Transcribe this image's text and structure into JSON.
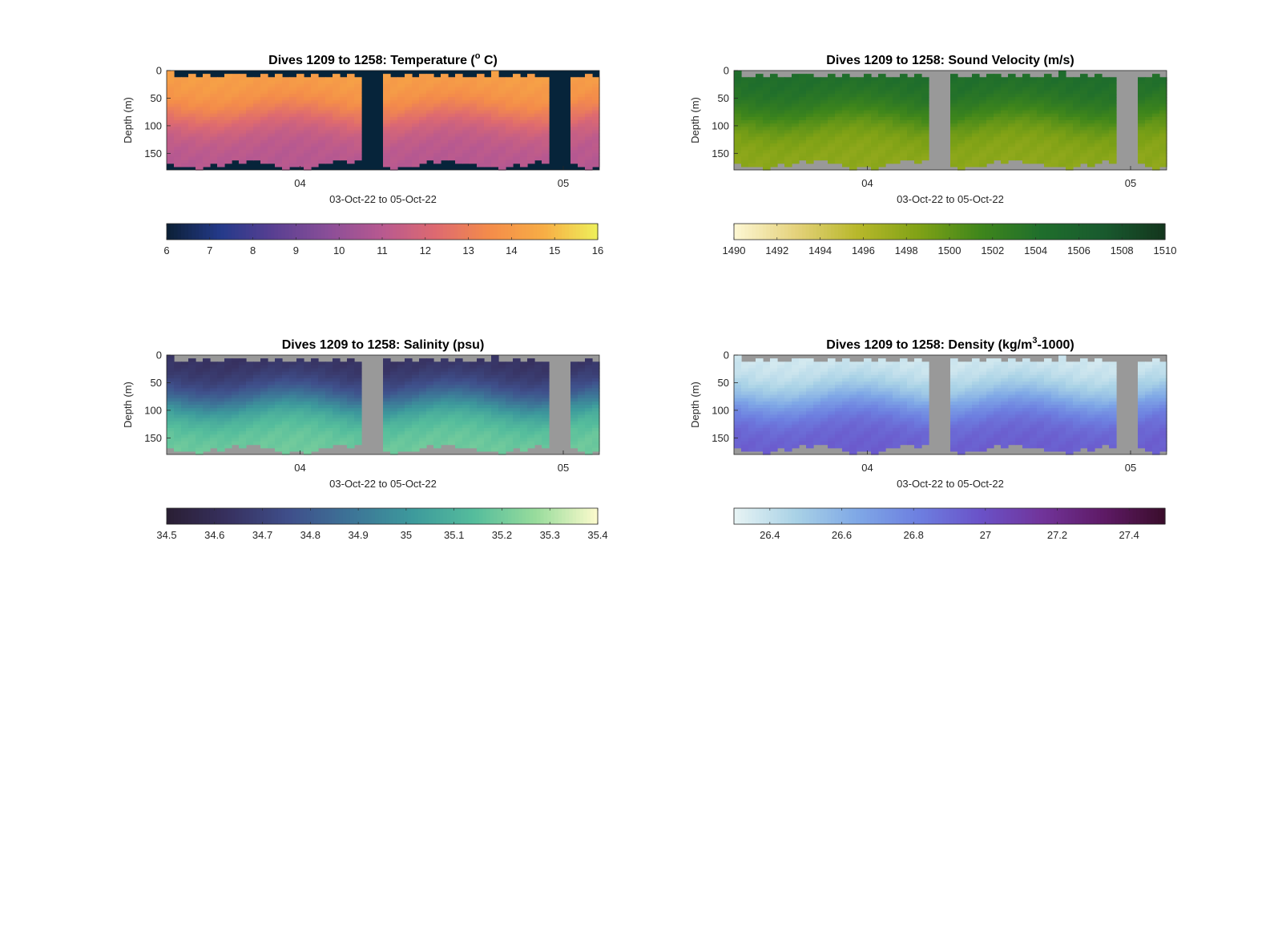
{
  "chart_data": [
    {
      "id": "temperature",
      "type": "heatmap",
      "title": "Dives 1209 to 1258: Temperature (",
      "title_sup": "o",
      "title_end": " C)",
      "ylabel": "Depth (m)",
      "xlabel": "03-Oct-22 to 05-Oct-22",
      "x_ticks": [
        "04",
        "05"
      ],
      "y_ticks": [
        0,
        50,
        100,
        150
      ],
      "ylim": [
        0,
        180
      ],
      "y_reversed": true,
      "colorbar": {
        "min": 6,
        "max": 16,
        "ticks": [
          "6",
          "7",
          "8",
          "9",
          "10",
          "11",
          "12",
          "13",
          "14",
          "15",
          "16"
        ],
        "colors": [
          "#0b1f35",
          "#243a8a",
          "#5a3f92",
          "#8a4e98",
          "#b85990",
          "#de6a70",
          "#f48c4a",
          "#f7ad45",
          "#eef05a"
        ]
      },
      "nodata_color": "#06243a",
      "surface_value": 14.3,
      "bottom_value": 10.9
    },
    {
      "id": "sound_velocity",
      "type": "heatmap",
      "title": "Dives 1209 to 1258: Sound Velocity (m/s)",
      "ylabel": "Depth (m)",
      "xlabel": "03-Oct-22 to 05-Oct-22",
      "x_ticks": [
        "04",
        "05"
      ],
      "y_ticks": [
        0,
        50,
        100,
        150
      ],
      "ylim": [
        0,
        180
      ],
      "y_reversed": true,
      "colorbar": {
        "min": 1490,
        "max": 1510,
        "ticks": [
          "1490",
          "1492",
          "1494",
          "1496",
          "1498",
          "1500",
          "1502",
          "1504",
          "1506",
          "1508",
          "1510"
        ],
        "colors": [
          "#fdf7d4",
          "#e5d27c",
          "#b8b82b",
          "#80a216",
          "#3f861b",
          "#1f6e2c",
          "#195a2e",
          "#13361e"
        ]
      },
      "nodata_color": "#999999",
      "surface_value": 1504.5,
      "bottom_value": 1497.8
    },
    {
      "id": "salinity",
      "type": "heatmap",
      "title": "Dives 1209 to 1258: Salinity (psu)",
      "ylabel": "Depth (m)",
      "xlabel": "03-Oct-22 to 05-Oct-22",
      "x_ticks": [
        "04",
        "05"
      ],
      "y_ticks": [
        0,
        50,
        100,
        150
      ],
      "ylim": [
        0,
        180
      ],
      "y_reversed": true,
      "colorbar": {
        "min": 34.5,
        "max": 35.4,
        "ticks": [
          "34.5",
          "34.6",
          "34.7",
          "34.8",
          "34.9",
          "35",
          "35.1",
          "35.2",
          "35.3",
          "35.4"
        ],
        "colors": [
          "#2a1e33",
          "#373160",
          "#3f4f8b",
          "#3d7497",
          "#3d9a9c",
          "#55bd9c",
          "#98dc9c",
          "#fdfbcd"
        ]
      },
      "nodata_color": "#999999",
      "surface_value": 34.62,
      "bottom_value": 35.2
    },
    {
      "id": "density",
      "type": "heatmap",
      "title": "Dives 1209 to 1258: Density (kg/m",
      "title_sup": "3",
      "title_end": "-1000)",
      "ylabel": "Depth (m)",
      "xlabel": "03-Oct-22 to 05-Oct-22",
      "x_ticks": [
        "04",
        "05"
      ],
      "y_ticks": [
        0,
        50,
        100,
        150
      ],
      "ylim": [
        0,
        180
      ],
      "y_reversed": true,
      "colorbar": {
        "min": 26.3,
        "max": 27.5,
        "ticks": [
          "26.4",
          "26.6",
          "26.8",
          "27",
          "27.2",
          "27.4"
        ],
        "colors": [
          "#e8f4f4",
          "#a9d2e6",
          "#7fa8e6",
          "#6d7fe0",
          "#6a52c8",
          "#71349a",
          "#5e1a66",
          "#3a0d2b"
        ]
      },
      "nodata_color": "#999999",
      "surface_value": 26.35,
      "bottom_value": 26.95
    }
  ]
}
